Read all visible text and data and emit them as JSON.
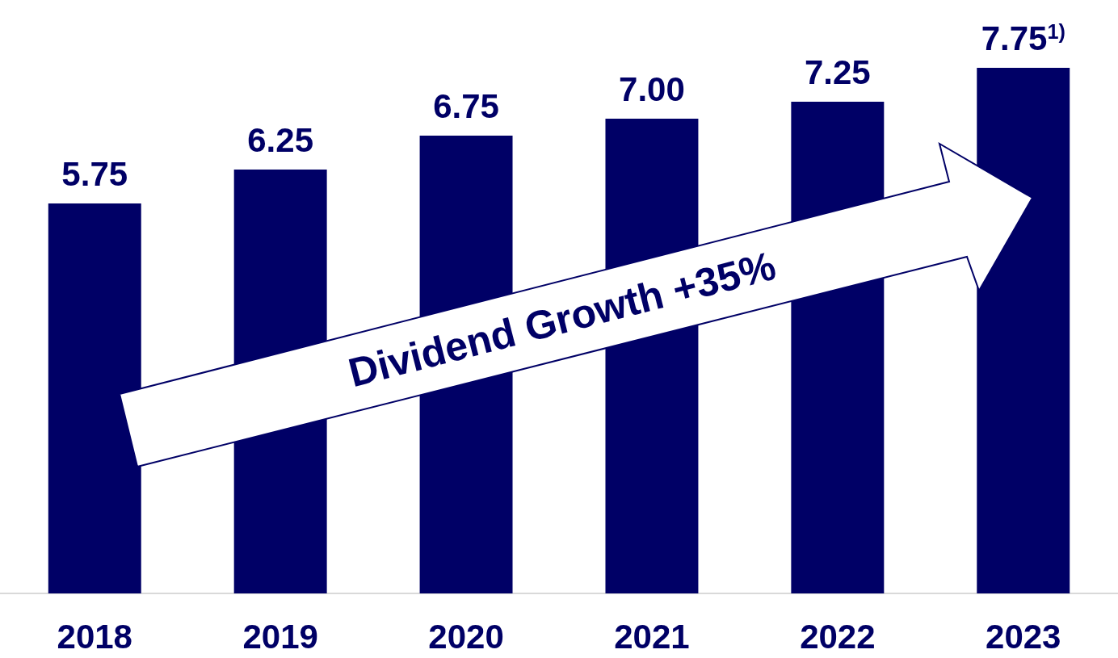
{
  "chart_data": {
    "type": "bar",
    "categories": [
      "2018",
      "2019",
      "2020",
      "2021",
      "2022",
      "2023"
    ],
    "values": [
      5.75,
      6.25,
      6.75,
      7.0,
      7.25,
      7.75
    ],
    "color": "#000066",
    "tick_labels": "x",
    "value_labels": [
      "5.75",
      "6.25",
      "6.75",
      "7.00",
      "7.25",
      "7.75$^{1)}$"
    ],
    "annotations": [
      "Dividend Growth +35%"
    ]
  }
}
